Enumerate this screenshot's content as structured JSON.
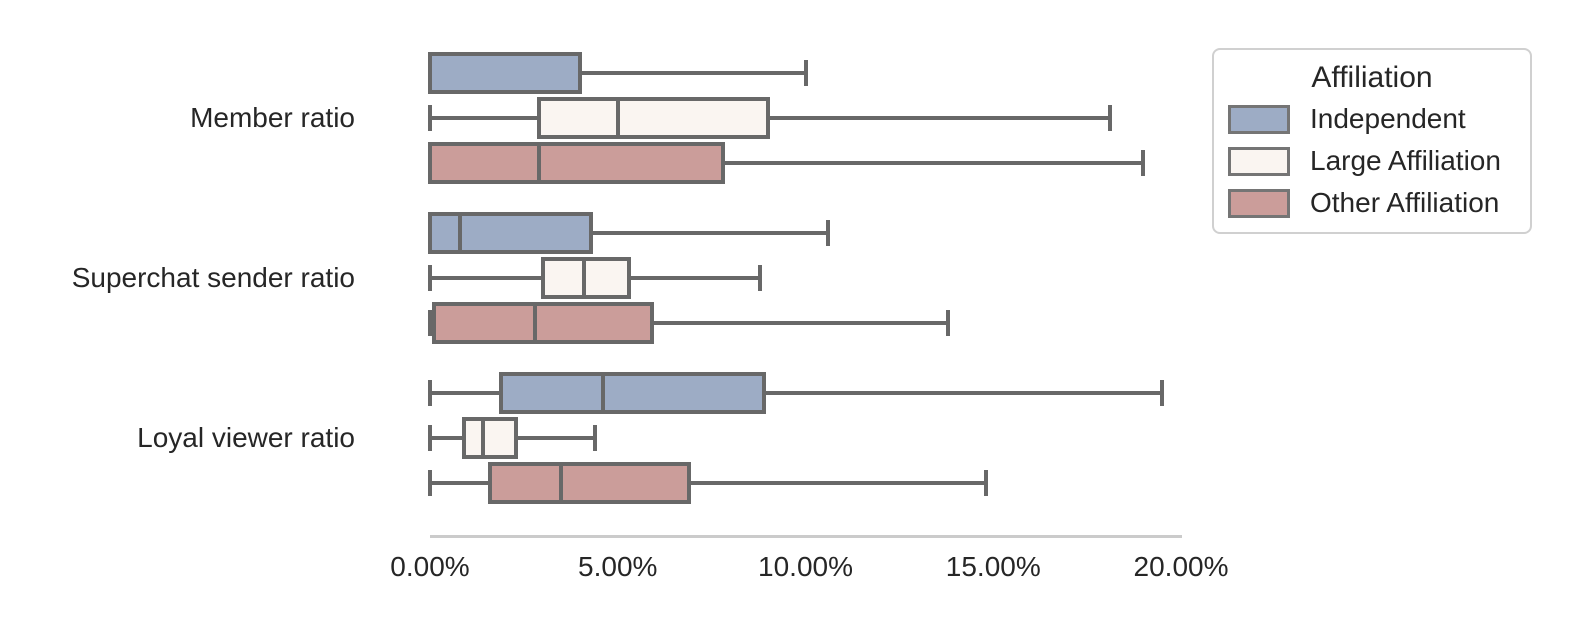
{
  "chart_data": {
    "type": "boxplot",
    "orientation": "horizontal",
    "title": "",
    "xlabel": "",
    "ylabel": "",
    "categories": [
      "Member ratio",
      "Superchat sender ratio",
      "Loyal viewer ratio"
    ],
    "x_ticks": [
      "0.00%",
      "5.00%",
      "10.00%",
      "15.00%",
      "20.00%"
    ],
    "x_tick_values": [
      0,
      5,
      10,
      15,
      20
    ],
    "xlim": [
      0,
      20
    ],
    "x_unit": "percent",
    "grid": false,
    "legend": {
      "title": "Affiliation",
      "position": "upper right"
    },
    "colors": {
      "box_edge": "#686868",
      "axis_line": "#cbcbcb",
      "legend_border": "#d0d0d0",
      "text": "#262626"
    },
    "series": [
      {
        "name": "Independent",
        "color": "#9dacc5",
        "boxes": [
          {
            "category": "Member ratio",
            "whisker_low": 0.0,
            "q1": 0.0,
            "median": 0.0,
            "q3": 4.0,
            "whisker_high": 10.0
          },
          {
            "category": "Superchat sender ratio",
            "whisker_low": 0.0,
            "q1": 0.0,
            "median": 0.8,
            "q3": 4.3,
            "whisker_high": 10.6
          },
          {
            "category": "Loyal viewer ratio",
            "whisker_low": 0.0,
            "q1": 1.9,
            "median": 4.6,
            "q3": 8.9,
            "whisker_high": 19.5
          }
        ]
      },
      {
        "name": "Large Affiliation",
        "color": "#faf5f1",
        "boxes": [
          {
            "category": "Member ratio",
            "whisker_low": 0.0,
            "q1": 2.9,
            "median": 5.0,
            "q3": 9.0,
            "whisker_high": 18.1
          },
          {
            "category": "Superchat sender ratio",
            "whisker_low": 0.0,
            "q1": 3.0,
            "median": 4.1,
            "q3": 5.3,
            "whisker_high": 8.8
          },
          {
            "category": "Loyal viewer ratio",
            "whisker_low": 0.0,
            "q1": 0.9,
            "median": 1.4,
            "q3": 2.3,
            "whisker_high": 4.4
          }
        ]
      },
      {
        "name": "Other Affiliation",
        "color": "#cb9d9a",
        "boxes": [
          {
            "category": "Member ratio",
            "whisker_low": 0.0,
            "q1": 0.0,
            "median": 2.9,
            "q3": 7.8,
            "whisker_high": 19.0
          },
          {
            "category": "Superchat sender ratio",
            "whisker_low": 0.0,
            "q1": 0.1,
            "median": 2.8,
            "q3": 5.9,
            "whisker_high": 13.8
          },
          {
            "category": "Loyal viewer ratio",
            "whisker_low": 0.0,
            "q1": 1.6,
            "median": 3.5,
            "q3": 6.9,
            "whisker_high": 14.8
          }
        ]
      }
    ]
  }
}
